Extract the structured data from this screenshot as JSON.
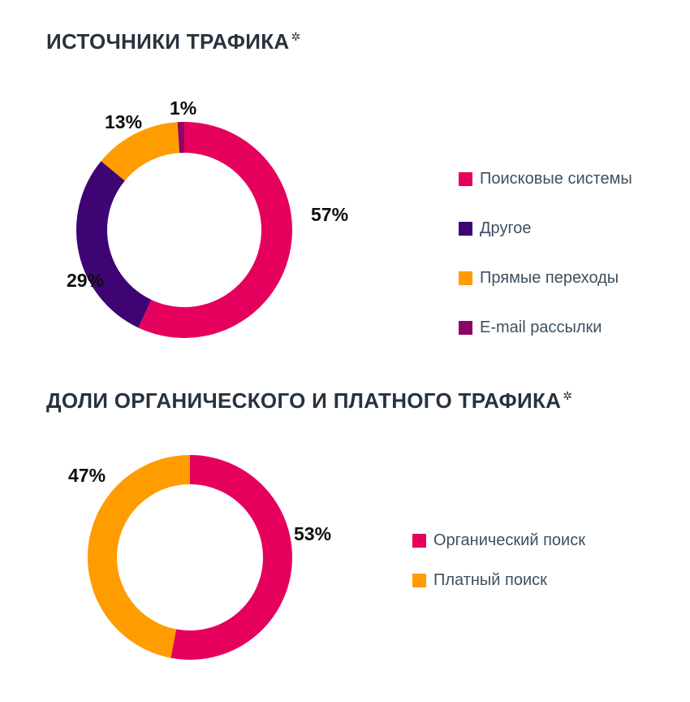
{
  "chart_data": [
    {
      "type": "pie",
      "subtype": "donut",
      "title": "ИСТОЧНИКИ ТРАФИКА",
      "title_mark": "✲",
      "categories": [
        "Поисковые системы",
        "Другое",
        "Прямые переходы",
        "E-mail рассылки"
      ],
      "values": [
        57,
        29,
        13,
        1
      ],
      "value_labels": [
        "57%",
        "29%",
        "13%",
        "1%"
      ],
      "colors": [
        "#E6005E",
        "#3E0473",
        "#FF9C00",
        "#8E0563"
      ],
      "legend_position": "right",
      "start_angle_deg": 0,
      "clockwise": true,
      "donut_hole_ratio": 0.71
    },
    {
      "type": "pie",
      "subtype": "donut",
      "title": "ДОЛИ ОРГАНИЧЕСКОГО И ПЛАТНОГО ТРАФИКА",
      "title_mark": "✲",
      "categories": [
        "Органический поиск",
        "Платный поиск"
      ],
      "values": [
        53,
        47
      ],
      "value_labels": [
        "53%",
        "47%"
      ],
      "colors": [
        "#E6005E",
        "#FF9C00"
      ],
      "legend_position": "right",
      "start_angle_deg": 0,
      "clockwise": true,
      "donut_hole_ratio": 0.715
    }
  ],
  "styles": {
    "title_color": "#27333F",
    "label_color": "#0d0d0d",
    "legend_text_color": "#3D5060",
    "background": "#FFFFFF"
  }
}
